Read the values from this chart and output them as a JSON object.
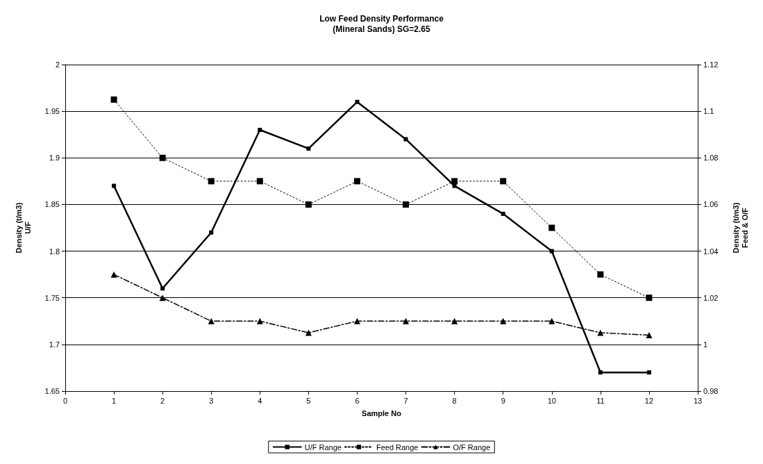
{
  "chart_data": {
    "type": "line",
    "title": "Low Feed Density Performance\n(Mineral Sands) SG=2.65",
    "xlabel": "Sample No",
    "ylabel": "Density (t/m3)\nU/F",
    "y2label": "Density (t/m3)\nFeed & O/F",
    "x": [
      1,
      2,
      3,
      4,
      5,
      6,
      7,
      8,
      9,
      10,
      11,
      12
    ],
    "xlim": [
      0,
      13
    ],
    "xticks": [
      0,
      1,
      2,
      3,
      4,
      5,
      6,
      7,
      8,
      9,
      10,
      11,
      12,
      13
    ],
    "ylim": [
      1.65,
      2
    ],
    "yticks": [
      1.65,
      1.7,
      1.75,
      1.8,
      1.85,
      1.9,
      1.95,
      2
    ],
    "y2lim": [
      0.98,
      1.12
    ],
    "y2ticks": [
      0.98,
      1,
      1.02,
      1.04,
      1.06,
      1.08,
      1.1,
      1.12
    ],
    "grid": "y",
    "legend": "bottom",
    "series": [
      {
        "name": "U/F Range",
        "color": "#000000",
        "marker": "square",
        "line_style": "solid",
        "values": [
          1.87,
          1.76,
          1.82,
          1.93,
          1.91,
          1.96,
          1.92,
          1.87,
          1.84,
          1.8,
          1.67,
          1.67
        ]
      },
      {
        "name": "Feed Range",
        "color": "#000000",
        "marker": "square",
        "line_style": "dotted",
        "axis": "y2",
        "values": [
          1.105,
          1.08,
          1.07,
          1.07,
          1.06,
          1.07,
          1.06,
          1.07,
          1.07,
          1.05,
          1.03,
          1.02
        ]
      },
      {
        "name": "O/F Range",
        "color": "#000000",
        "marker": "triangle",
        "line_style": "dashed",
        "axis": "y2",
        "values": [
          1.03,
          1.02,
          1.01,
          1.01,
          1.005,
          1.01,
          1.01,
          1.01,
          1.01,
          1.01,
          1.005,
          1.004
        ]
      }
    ]
  }
}
